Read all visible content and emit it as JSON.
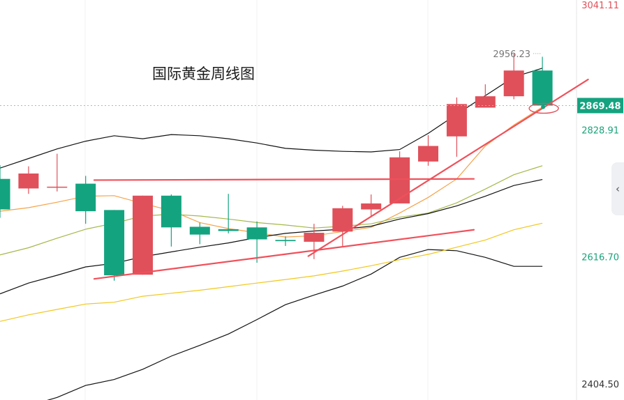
{
  "title": "国际黄金周线图",
  "ui": {
    "collapse_icon": "chevron-left-icon",
    "collapse_glyph": "‹"
  },
  "chart_data": {
    "type": "candlestick",
    "ylim": [
      2404.5,
      3041.11
    ],
    "y_tick_labels": [
      {
        "value": 3041.11,
        "label": "3041.11",
        "color": "#e0505a"
      },
      {
        "value": 2828.91,
        "label": "2828.91",
        "color": "#1aa37a"
      },
      {
        "value": 2616.7,
        "label": "2616.70",
        "color": "#1aa37a"
      },
      {
        "value": 2404.5,
        "label": "2404.50",
        "color": "#333333"
      }
    ],
    "current_price": {
      "value": 2869.48,
      "label": "2869.48",
      "color": "#14a37f"
    },
    "high_annotation": {
      "value": 2956.23,
      "label": "2956.23"
    },
    "colors": {
      "up": "#e0505a",
      "down": "#14a37f",
      "trendline": "#f0505a",
      "highlight_ellipse": "#e0505a"
    },
    "candles": [
      {
        "o": 2747,
        "c": 2696,
        "h": 2770,
        "l": 2682
      },
      {
        "o": 2731,
        "c": 2756,
        "h": 2768,
        "l": 2722
      },
      {
        "o": 2734,
        "c": 2734,
        "h": 2789,
        "l": 2726
      },
      {
        "o": 2739,
        "c": 2693,
        "h": 2752,
        "l": 2672
      },
      {
        "o": 2695,
        "c": 2586,
        "h": 2695,
        "l": 2577
      },
      {
        "o": 2587,
        "c": 2719,
        "h": 2719,
        "l": 2587
      },
      {
        "o": 2719,
        "c": 2666,
        "h": 2721,
        "l": 2634
      },
      {
        "o": 2667,
        "c": 2654,
        "h": 2674,
        "l": 2638
      },
      {
        "o": 2663,
        "c": 2660,
        "h": 2722,
        "l": 2656
      },
      {
        "o": 2666,
        "c": 2646,
        "h": 2676,
        "l": 2607
      },
      {
        "o": 2645,
        "c": 2643,
        "h": 2651,
        "l": 2635
      },
      {
        "o": 2642,
        "c": 2657,
        "h": 2672,
        "l": 2613
      },
      {
        "o": 2659,
        "c": 2698,
        "h": 2702,
        "l": 2634
      },
      {
        "o": 2696,
        "c": 2706,
        "h": 2721,
        "l": 2684
      },
      {
        "o": 2706,
        "c": 2783,
        "h": 2793,
        "l": 2706
      },
      {
        "o": 2776,
        "c": 2802,
        "h": 2820,
        "l": 2769
      },
      {
        "o": 2818,
        "c": 2872,
        "h": 2883,
        "l": 2784
      },
      {
        "o": 2866,
        "c": 2885,
        "h": 2905,
        "l": 2866
      },
      {
        "o": 2885,
        "c": 2928,
        "h": 2956,
        "l": 2880
      },
      {
        "o": 2928,
        "c": 2869.48,
        "h": 2951,
        "l": 2864
      }
    ],
    "series": [
      {
        "kind": "bollinger-upper",
        "color": "#111111",
        "values": [
          2765,
          2781,
          2797,
          2810,
          2819,
          2814,
          2821,
          2819,
          2814,
          2807,
          2798,
          2795,
          2793,
          2792,
          2796,
          2823,
          2855,
          2886,
          2917,
          2932
        ]
      },
      {
        "kind": "bollinger-lower",
        "color": "#111111",
        "values": [
          2360,
          2368,
          2382,
          2402,
          2412,
          2429,
          2451,
          2469,
          2488,
          2512,
          2537,
          2553,
          2568,
          2588,
          2616,
          2629,
          2627,
          2616,
          2601,
          2601
        ]
      },
      {
        "kind": "ma",
        "color": "#f5a34a",
        "values": [
          2693,
          2699,
          2708,
          2718,
          2719,
          2706,
          2694,
          2674,
          2664,
          2657,
          2650,
          2652,
          2659,
          2666,
          2690,
          2716,
          2747,
          2802,
          2837,
          2867
        ]
      },
      {
        "kind": "ma",
        "color": "#a4b84a",
        "values": [
          2620,
          2632,
          2648,
          2663,
          2673,
          2685,
          2688,
          2685,
          2680,
          2674,
          2670,
          2665,
          2668,
          2672,
          2683,
          2690,
          2707,
          2730,
          2754,
          2769
        ]
      },
      {
        "kind": "ma",
        "color": "#111111",
        "values": [
          2555,
          2573,
          2586,
          2600,
          2606,
          2617,
          2625,
          2633,
          2640,
          2649,
          2656,
          2660,
          2663,
          2668,
          2680,
          2689,
          2702,
          2718,
          2736,
          2746
        ]
      },
      {
        "kind": "ma",
        "color": "#f2c71c",
        "values": [
          2509,
          2520,
          2529,
          2538,
          2541,
          2551,
          2556,
          2561,
          2567,
          2573,
          2579,
          2585,
          2593,
          2602,
          2612,
          2621,
          2633,
          2645,
          2662,
          2673
        ]
      }
    ],
    "trendlines": [
      {
        "from": {
          "i": 3.3,
          "v": 2745
        },
        "to": {
          "i": 16.6,
          "v": 2747
        }
      },
      {
        "from": {
          "i": 3.3,
          "v": 2580
        },
        "to": {
          "i": 16.6,
          "v": 2662
        }
      },
      {
        "from": {
          "i": 10.8,
          "v": 2618
        },
        "to": {
          "i": 20.6,
          "v": 2913
        }
      }
    ]
  }
}
